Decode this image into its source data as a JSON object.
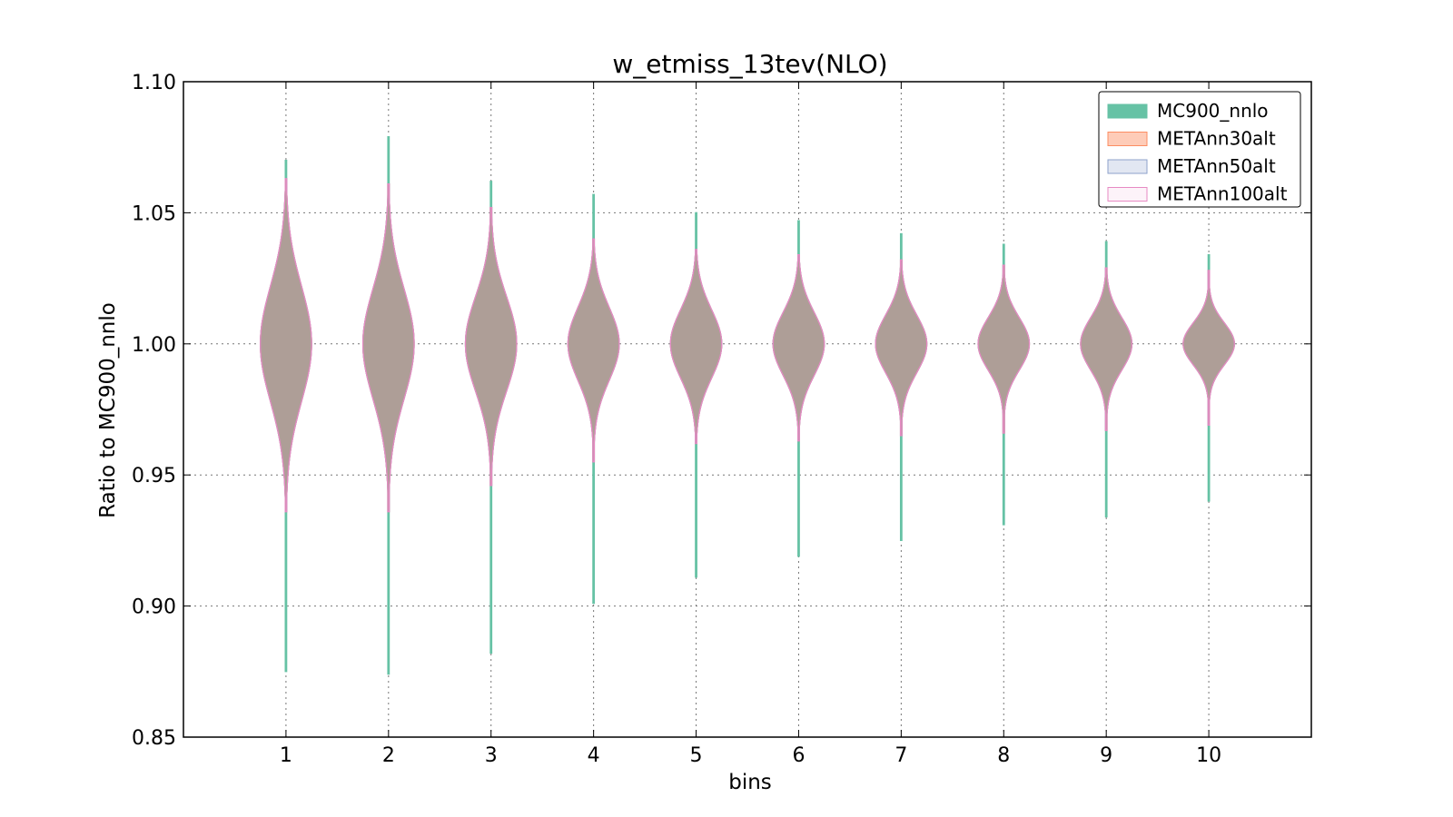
{
  "chart_data": {
    "type": "violin",
    "title": "w_etmiss_13tev(NLO)",
    "xlabel": "bins",
    "ylabel": "Ratio to MC900_nnlo",
    "ylim": [
      0.85,
      1.1
    ],
    "xlim": [
      0,
      11
    ],
    "yticks": [
      0.85,
      0.9,
      0.95,
      1.0,
      1.05,
      1.1
    ],
    "ytick_labels": [
      "0.85",
      "0.90",
      "0.95",
      "1.00",
      "1.05",
      "1.10"
    ],
    "categories": [
      "1",
      "2",
      "3",
      "4",
      "5",
      "6",
      "7",
      "8",
      "9",
      "10"
    ],
    "grid": true,
    "legend_position": "top-right",
    "series": [
      {
        "name": "MC900_nnlo",
        "color": "#66c2a5",
        "ymin": [
          0.875,
          0.874,
          0.882,
          0.901,
          0.911,
          0.919,
          0.925,
          0.931,
          0.934,
          0.94
        ],
        "ymax": [
          1.07,
          1.079,
          1.062,
          1.057,
          1.05,
          1.047,
          1.042,
          1.038,
          1.039,
          1.034
        ],
        "median": [
          1.0,
          1.0,
          1.0,
          1.0,
          1.0,
          1.0,
          1.0,
          1.0,
          1.0,
          1.0
        ],
        "max_halfwidth": [
          0.25,
          0.25,
          0.25,
          0.25,
          0.25,
          0.25,
          0.25,
          0.25,
          0.25,
          0.25
        ],
        "sigma": [
          0.022,
          0.021,
          0.018,
          0.014,
          0.013,
          0.012,
          0.011,
          0.01,
          0.01,
          0.008
        ]
      },
      {
        "name": "METAnn30alt",
        "color": "#fc8d62",
        "ymin": [
          0.936,
          0.936,
          0.946,
          0.955,
          0.962,
          0.963,
          0.965,
          0.966,
          0.967,
          0.969
        ],
        "ymax": [
          1.063,
          1.061,
          1.052,
          1.04,
          1.036,
          1.034,
          1.032,
          1.03,
          1.029,
          1.028
        ],
        "median": [
          1.0,
          1.0,
          1.0,
          1.0,
          1.0,
          1.0,
          1.0,
          1.0,
          1.0,
          1.0
        ],
        "max_halfwidth": [
          0.25,
          0.25,
          0.25,
          0.25,
          0.25,
          0.25,
          0.25,
          0.25,
          0.25,
          0.25
        ],
        "sigma": [
          0.022,
          0.021,
          0.018,
          0.014,
          0.013,
          0.012,
          0.011,
          0.01,
          0.01,
          0.008
        ]
      },
      {
        "name": "METAnn50alt",
        "color": "#8da0cb",
        "ymin": [
          0.936,
          0.936,
          0.946,
          0.955,
          0.962,
          0.963,
          0.965,
          0.966,
          0.967,
          0.969
        ],
        "ymax": [
          1.063,
          1.061,
          1.052,
          1.04,
          1.036,
          1.034,
          1.032,
          1.03,
          1.029,
          1.028
        ],
        "median": [
          1.0,
          1.0,
          1.0,
          1.0,
          1.0,
          1.0,
          1.0,
          1.0,
          1.0,
          1.0
        ],
        "max_halfwidth": [
          0.25,
          0.25,
          0.25,
          0.25,
          0.25,
          0.25,
          0.25,
          0.25,
          0.25,
          0.25
        ],
        "sigma": [
          0.022,
          0.021,
          0.018,
          0.014,
          0.013,
          0.012,
          0.011,
          0.01,
          0.01,
          0.008
        ]
      },
      {
        "name": "METAnn100alt",
        "color": "#e78ac3",
        "ymin": [
          0.936,
          0.936,
          0.946,
          0.955,
          0.962,
          0.963,
          0.965,
          0.966,
          0.967,
          0.969
        ],
        "ymax": [
          1.063,
          1.061,
          1.052,
          1.04,
          1.036,
          1.034,
          1.032,
          1.03,
          1.029,
          1.028
        ],
        "median": [
          1.0,
          1.0,
          1.0,
          1.0,
          1.0,
          1.0,
          1.0,
          1.0,
          1.0,
          1.0
        ],
        "max_halfwidth": [
          0.25,
          0.25,
          0.25,
          0.25,
          0.25,
          0.25,
          0.25,
          0.25,
          0.25,
          0.25
        ],
        "sigma": [
          0.022,
          0.021,
          0.018,
          0.014,
          0.013,
          0.012,
          0.011,
          0.01,
          0.01,
          0.008
        ]
      }
    ],
    "overlap_fill_color": "#ae9e97"
  }
}
